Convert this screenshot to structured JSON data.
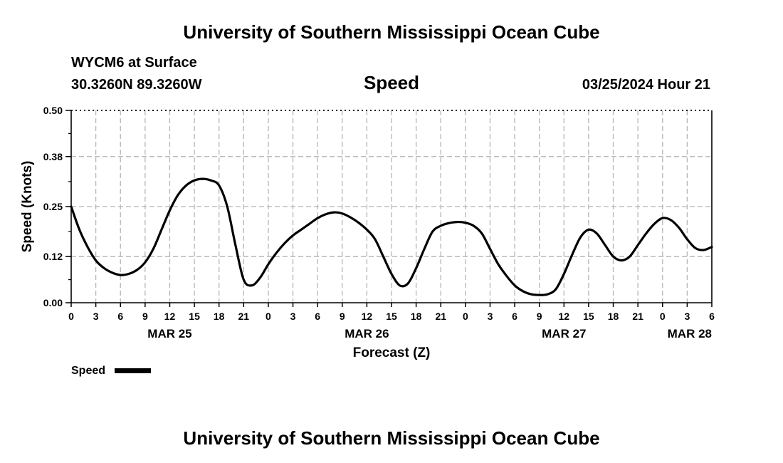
{
  "header": {
    "title": "University of Southern Mississippi Ocean Cube",
    "station": "WYCM6 at Surface",
    "coords": "30.3260N  89.3260W",
    "plot_title": "Speed",
    "datetime": "03/25/2024 Hour 21"
  },
  "footer": {
    "title": "University of Southern Mississippi Ocean Cube"
  },
  "legend": {
    "label": "Speed",
    "line_color": "#000000"
  },
  "colors": {
    "series": "#000000",
    "grid": "#b5b5b5",
    "background": "#ffffff"
  },
  "chart_data": {
    "type": "line",
    "title": "Speed",
    "xlabel": "Forecast (Z)",
    "ylabel": "Speed (Knots)",
    "xlim": [
      0,
      78
    ],
    "ylim": [
      0.0,
      0.5
    ],
    "yticks": [
      0.0,
      0.12,
      0.25,
      0.38,
      0.5
    ],
    "ytick_labels": [
      "0.00",
      "0.12",
      "0.25",
      "0.38",
      "0.50"
    ],
    "xtick_hours": [
      0,
      3,
      6,
      9,
      12,
      15,
      18,
      21,
      24,
      27,
      30,
      33,
      36,
      39,
      42,
      45,
      48,
      51,
      54,
      57,
      60,
      63,
      66,
      69,
      72,
      75,
      78
    ],
    "xtick_labels": [
      "0",
      "3",
      "6",
      "9",
      "12",
      "15",
      "18",
      "21",
      "0",
      "3",
      "6",
      "9",
      "12",
      "15",
      "18",
      "21",
      "0",
      "3",
      "6",
      "9",
      "12",
      "15",
      "18",
      "21",
      "0",
      "3",
      "6"
    ],
    "date_labels": [
      {
        "hour": 12,
        "label": "MAR 25"
      },
      {
        "hour": 36,
        "label": "MAR 26"
      },
      {
        "hour": 60,
        "label": "MAR 27"
      },
      {
        "hour": 78,
        "label": "MAR 28"
      }
    ],
    "grid": true,
    "legend_position": "bottom-left",
    "series": [
      {
        "name": "Speed",
        "x": [
          0,
          1,
          2,
          3,
          4,
          5,
          6,
          7,
          8,
          9,
          10,
          11,
          12,
          13,
          14,
          15,
          16,
          17,
          18,
          19,
          20,
          21,
          22,
          23,
          24,
          25,
          26,
          27,
          28,
          29,
          30,
          31,
          32,
          33,
          34,
          35,
          36,
          37,
          38,
          39,
          40,
          41,
          42,
          43,
          44,
          45,
          46,
          47,
          48,
          49,
          50,
          51,
          52,
          53,
          54,
          55,
          56,
          57,
          58,
          59,
          60,
          61,
          62,
          63,
          64,
          65,
          66,
          67,
          68,
          69,
          70,
          71,
          72,
          73,
          74,
          75,
          76,
          77,
          78
        ],
        "values": [
          0.25,
          0.19,
          0.145,
          0.11,
          0.09,
          0.078,
          0.072,
          0.075,
          0.085,
          0.105,
          0.14,
          0.19,
          0.24,
          0.28,
          0.305,
          0.318,
          0.322,
          0.318,
          0.305,
          0.25,
          0.15,
          0.06,
          0.045,
          0.065,
          0.1,
          0.13,
          0.155,
          0.175,
          0.19,
          0.205,
          0.22,
          0.23,
          0.235,
          0.232,
          0.222,
          0.208,
          0.19,
          0.165,
          0.12,
          0.075,
          0.045,
          0.05,
          0.09,
          0.14,
          0.185,
          0.2,
          0.207,
          0.21,
          0.208,
          0.2,
          0.18,
          0.14,
          0.1,
          0.07,
          0.045,
          0.03,
          0.022,
          0.02,
          0.022,
          0.035,
          0.075,
          0.125,
          0.17,
          0.19,
          0.18,
          0.15,
          0.12,
          0.11,
          0.12,
          0.15,
          0.18,
          0.205,
          0.22,
          0.215,
          0.195,
          0.165,
          0.142,
          0.137,
          0.145
        ]
      }
    ]
  }
}
